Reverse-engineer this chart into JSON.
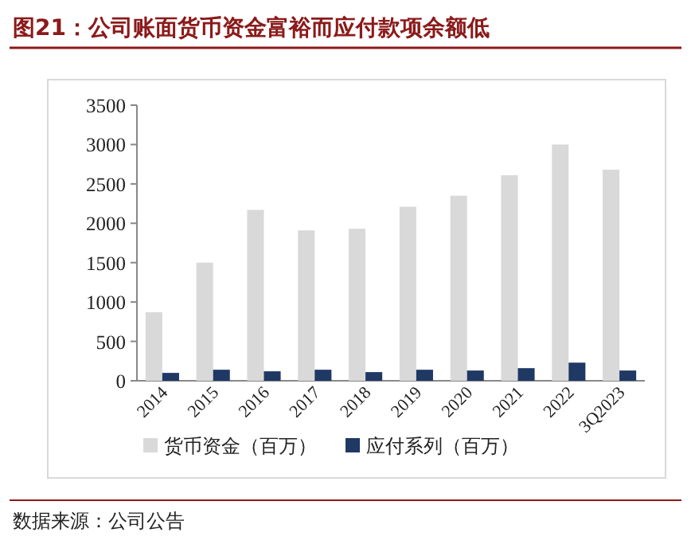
{
  "chart_data": {
    "type": "bar",
    "title": "图21：公司账面货币资金富裕而应付款项余额低",
    "categories": [
      "2014",
      "2015",
      "2016",
      "2017",
      "2018",
      "2019",
      "2020",
      "2021",
      "2022",
      "3Q2023"
    ],
    "series": [
      {
        "name": "货币资金（百万）",
        "color": "#d9d9d9",
        "values": [
          870,
          1500,
          2170,
          1910,
          1930,
          2210,
          2350,
          2610,
          3000,
          2680
        ]
      },
      {
        "name": "应付系列（百万）",
        "color": "#1f3864",
        "values": [
          100,
          140,
          120,
          140,
          110,
          140,
          130,
          160,
          230,
          130
        ]
      }
    ],
    "ylim": [
      0,
      3500
    ],
    "yticks": [
      0,
      500,
      1000,
      1500,
      2000,
      2500,
      3000,
      3500
    ],
    "grid": false,
    "legend": "bottom",
    "annotations": [
      "数据来源：公司公告"
    ]
  }
}
